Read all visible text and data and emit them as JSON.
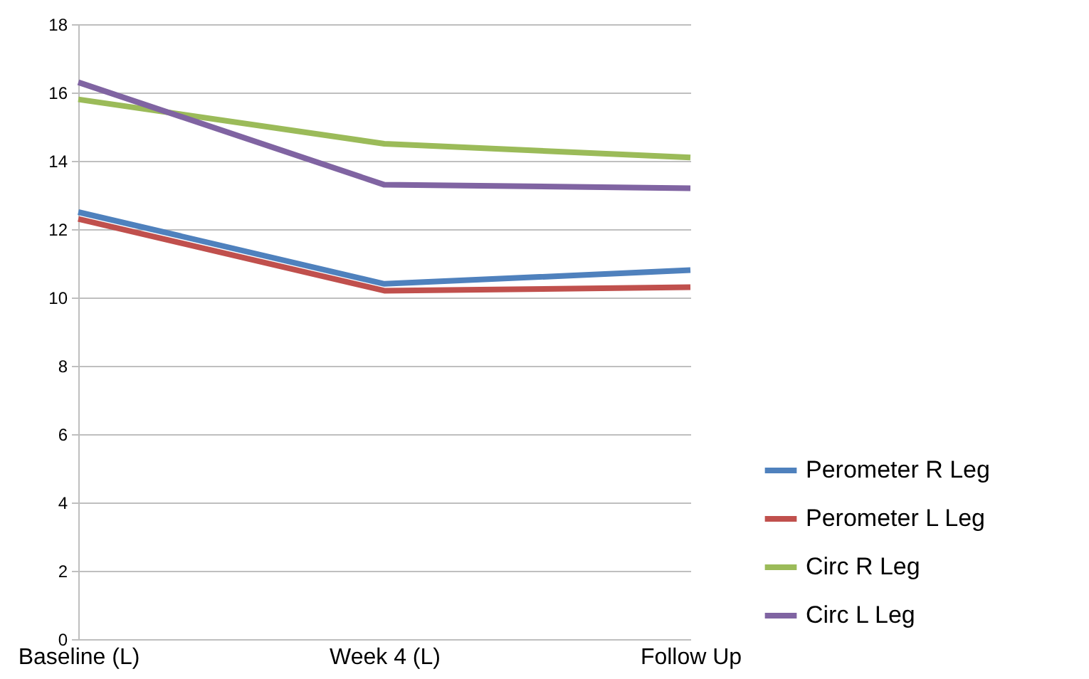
{
  "chart_data": {
    "type": "line",
    "categories": [
      "Baseline (L)",
      "Week 4 (L)",
      "Follow Up"
    ],
    "series": [
      {
        "name": "Perometer R Leg",
        "color": "#4f81bd",
        "values": [
          12.5,
          10.4,
          10.8
        ]
      },
      {
        "name": "Perometer L Leg",
        "color": "#c0504d",
        "values": [
          12.3,
          10.2,
          10.3
        ]
      },
      {
        "name": "Circ R Leg",
        "color": "#9bbb59",
        "values": [
          15.8,
          14.5,
          14.1
        ]
      },
      {
        "name": "Circ L Leg",
        "color": "#8064a2",
        "values": [
          16.3,
          13.3,
          13.2
        ]
      }
    ],
    "ylim": [
      0,
      18
    ],
    "yticks": [
      0,
      2,
      4,
      6,
      8,
      10,
      12,
      14,
      16,
      18
    ],
    "grid": "y",
    "legend": "right",
    "marker": "none",
    "line_style": "solid"
  }
}
